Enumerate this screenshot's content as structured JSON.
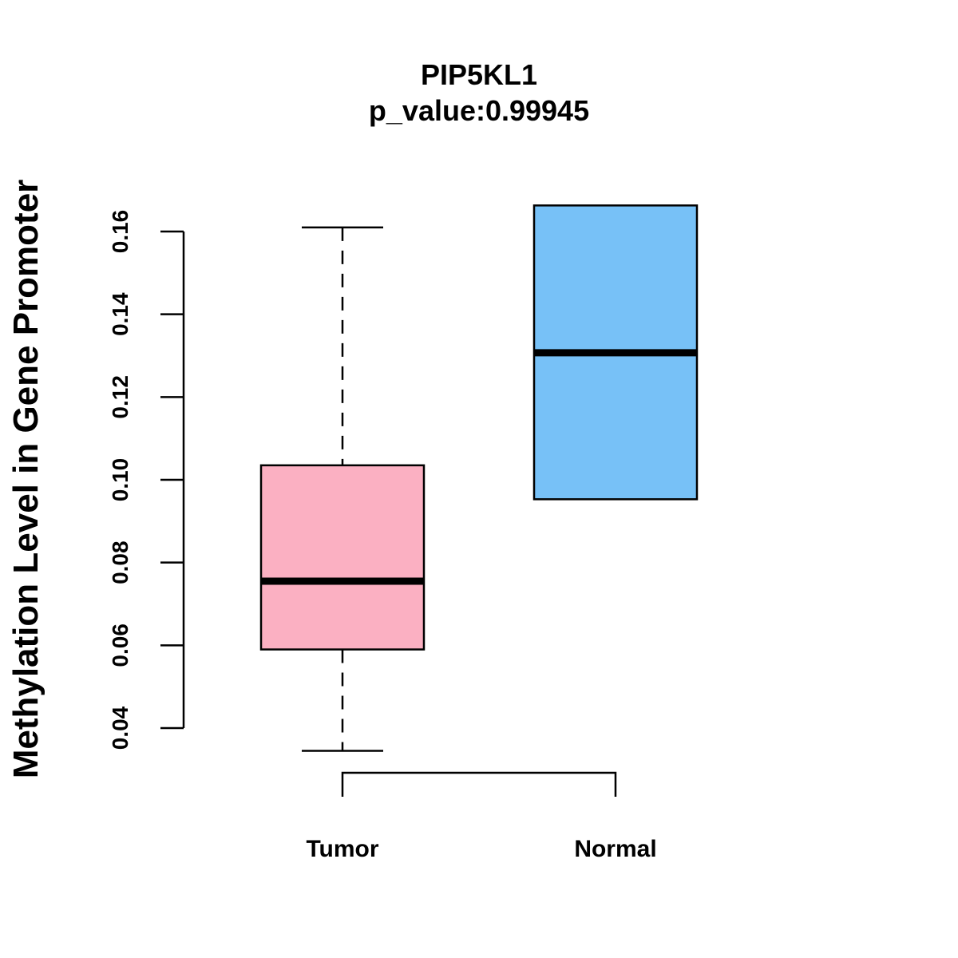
{
  "chart_data": {
    "type": "boxplot",
    "title": "PIP5KL1",
    "subtitle": "p_value:0.99945",
    "ylabel": "Methylation Level in Gene Promoter",
    "xlabel": "",
    "ylim": [
      0.04,
      0.16
    ],
    "yticks": [
      "0.04",
      "0.06",
      "0.08",
      "0.10",
      "0.12",
      "0.14",
      "0.16"
    ],
    "grid": false,
    "legend": "none",
    "categories": [
      "Tumor",
      "Normal"
    ],
    "boxes": [
      {
        "category": "Tumor",
        "color": "#FBB0C2",
        "whisker_low": 0.0345,
        "q1": 0.059,
        "median": 0.0755,
        "q3": 0.1035,
        "whisker_high": 0.161
      },
      {
        "category": "Normal",
        "color": "#77C1F7",
        "whisker_low": 0.0953,
        "q1": 0.0953,
        "median": 0.1307,
        "q3": 0.1663,
        "whisker_high": 0.1663
      }
    ],
    "comparison_bracket": [
      "Tumor",
      "Normal"
    ]
  }
}
